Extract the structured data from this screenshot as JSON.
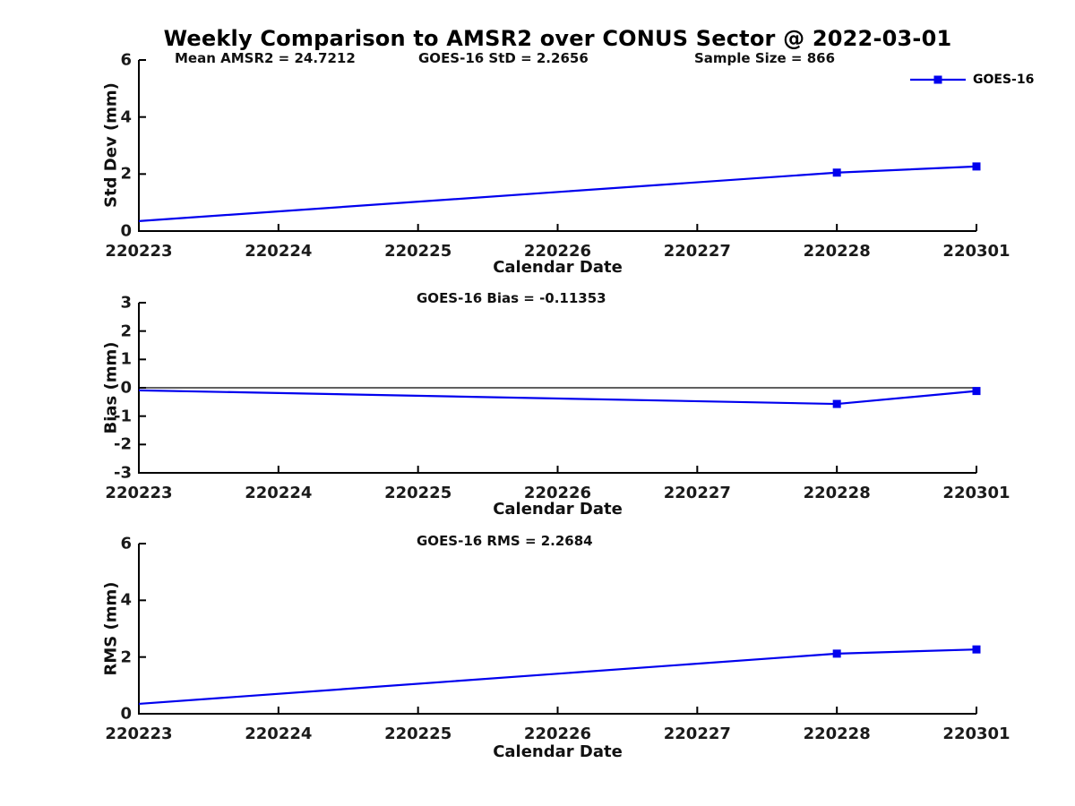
{
  "figure": {
    "title": "Weekly Comparison to AMSR2 over CONUS Sector @ 2022-03-01",
    "legend": {
      "label": "GOES-16"
    },
    "colors": {
      "line": "#0000EE",
      "axis": "#000000",
      "text": "#111111"
    },
    "x_axis": {
      "label": "Calendar Date",
      "tick_labels": [
        "220223",
        "220224",
        "220225",
        "220226",
        "220227",
        "220228",
        "220301"
      ]
    }
  },
  "chart_data": [
    {
      "type": "line",
      "title": "",
      "annotations": [
        "Mean AMSR2 = 24.7212",
        "GOES-16 StD = 2.2656",
        "Sample Size = 866"
      ],
      "ylabel": "Std Dev (mm)",
      "xlabel": "Calendar Date",
      "categories": [
        "220223",
        "220224",
        "220225",
        "220226",
        "220227",
        "220228",
        "220301"
      ],
      "series": [
        {
          "name": "GOES-16",
          "x": [
            "220223",
            "220228",
            "220301"
          ],
          "values": [
            0.35,
            2.05,
            2.2656
          ],
          "marker_on": [
            "220228",
            "220301"
          ]
        }
      ],
      "ylim": [
        0,
        6
      ],
      "yticks": [
        0,
        2,
        4,
        6
      ],
      "zero_line": false,
      "grid": false,
      "legend_position": "outside-top-right"
    },
    {
      "type": "line",
      "title": "",
      "annotations": [
        "GOES-16 Bias  = -0.11353"
      ],
      "ylabel": "Bias (mm)",
      "xlabel": "Calendar Date",
      "categories": [
        "220223",
        "220224",
        "220225",
        "220226",
        "220227",
        "220228",
        "220301"
      ],
      "series": [
        {
          "name": "GOES-16",
          "x": [
            "220223",
            "220228",
            "220301"
          ],
          "values": [
            -0.09,
            -0.57,
            -0.11353
          ],
          "marker_on": [
            "220228",
            "220301"
          ]
        }
      ],
      "ylim": [
        -3,
        3
      ],
      "yticks": [
        -3,
        -2,
        -1,
        0,
        1,
        2,
        3
      ],
      "zero_line": true,
      "grid": false,
      "legend_position": "none"
    },
    {
      "type": "line",
      "title": "",
      "annotations": [
        "GOES-16 RMS = 2.2684"
      ],
      "ylabel": "RMS (mm)",
      "xlabel": "Calendar Date",
      "categories": [
        "220223",
        "220224",
        "220225",
        "220226",
        "220227",
        "220228",
        "220301"
      ],
      "series": [
        {
          "name": "GOES-16",
          "x": [
            "220223",
            "220228",
            "220301"
          ],
          "values": [
            0.35,
            2.12,
            2.2684
          ],
          "marker_on": [
            "220228",
            "220301"
          ]
        }
      ],
      "ylim": [
        0,
        6
      ],
      "yticks": [
        0,
        2,
        4,
        6
      ],
      "zero_line": false,
      "grid": false,
      "legend_position": "none"
    }
  ]
}
